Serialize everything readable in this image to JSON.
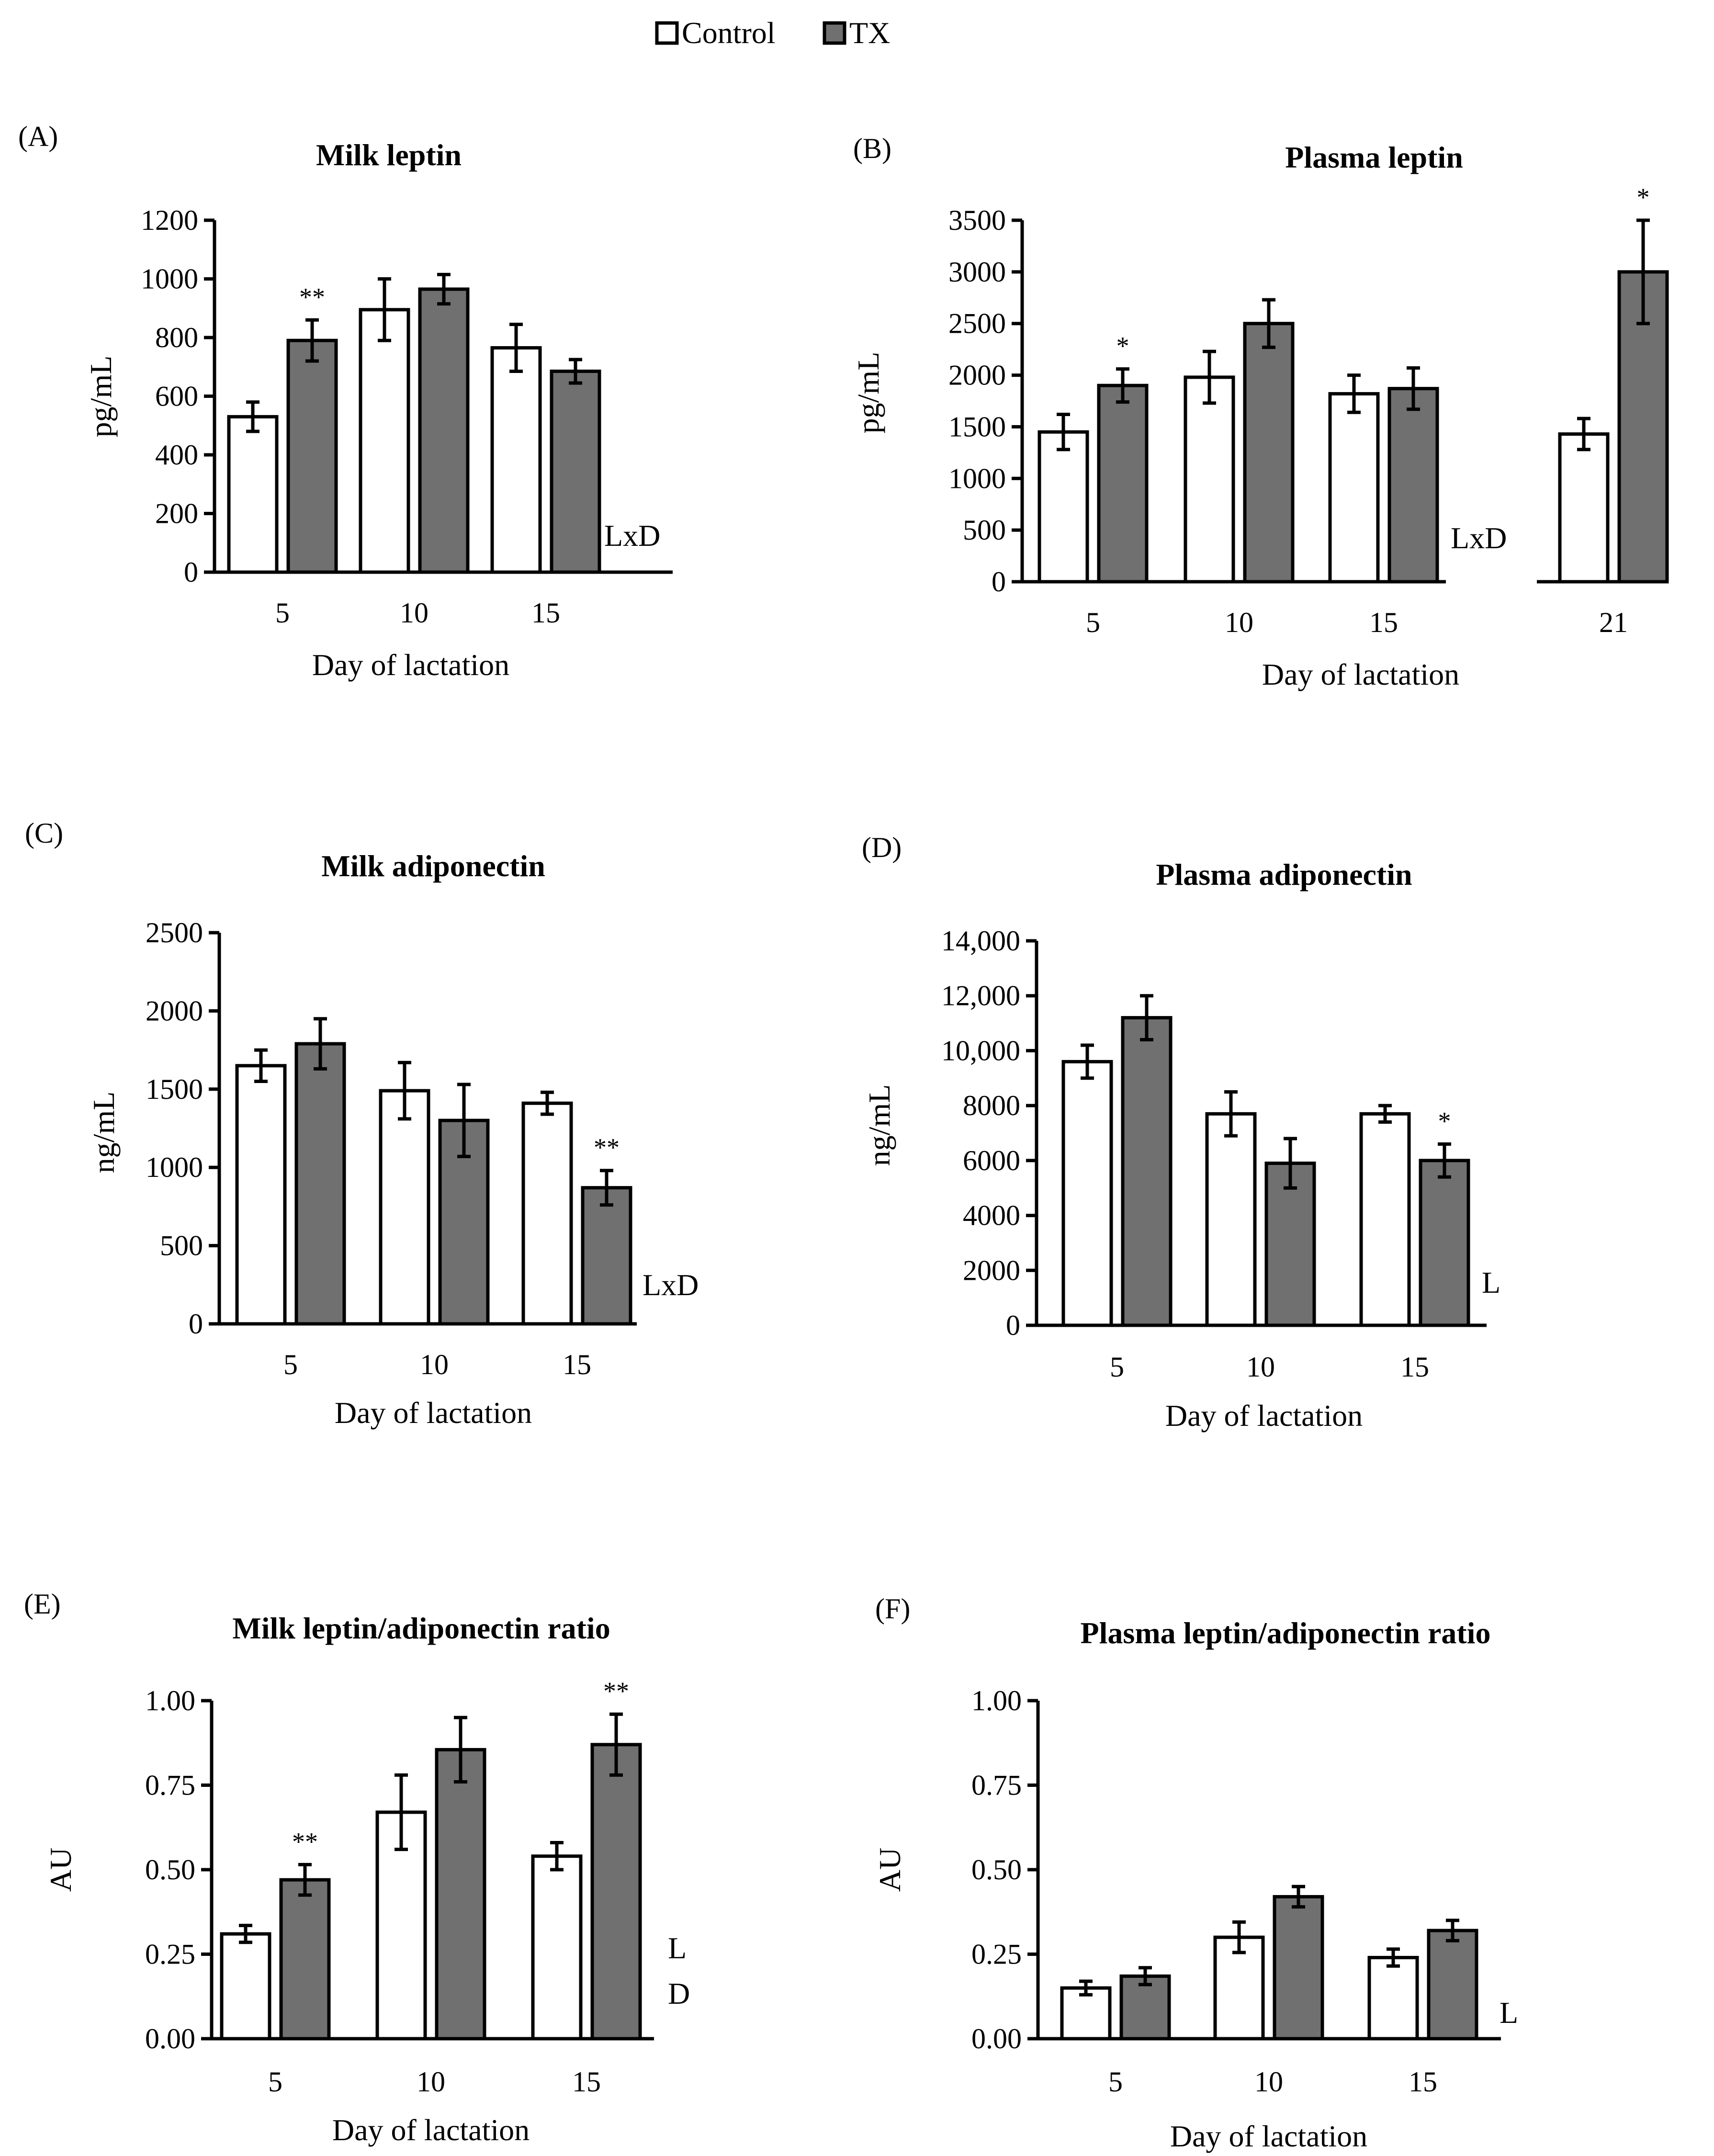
{
  "legend": {
    "items": [
      {
        "label": "Control",
        "color": "#ffffff"
      },
      {
        "label": "TX",
        "color": "#707070"
      }
    ]
  },
  "colors": {
    "control": "#ffffff",
    "tx": "#707070",
    "stroke": "#000000"
  },
  "chart_data": [
    {
      "id": "A",
      "panel_label": "(A)",
      "type": "bar",
      "title": "Milk leptin",
      "xlabel": "Day of lactation",
      "ylabel": "pg/mL",
      "categories": [
        "5",
        "10",
        "15"
      ],
      "ylim": [
        0,
        1200
      ],
      "yticks": [
        "0",
        "200",
        "400",
        "600",
        "800",
        "1000",
        "1200"
      ],
      "series": [
        {
          "name": "Control",
          "values": [
            530,
            895,
            765
          ],
          "errors": [
            50,
            105,
            80
          ]
        },
        {
          "name": "TX",
          "values": [
            790,
            965,
            685
          ],
          "errors": [
            70,
            50,
            40
          ]
        }
      ],
      "significance": [
        "**",
        "",
        ""
      ],
      "effect_label": [
        "LxD"
      ]
    },
    {
      "id": "B",
      "panel_label": "(B)",
      "type": "bar",
      "title": "Plasma leptin",
      "xlabel": "Day of lactation",
      "ylabel": "pg/mL",
      "categories": [
        "5",
        "10",
        "15"
      ],
      "ylim": [
        0,
        3500
      ],
      "yticks": [
        "0",
        "500",
        "1000",
        "1500",
        "2000",
        "2500",
        "3000",
        "3500"
      ],
      "series": [
        {
          "name": "Control",
          "values": [
            1450,
            1980,
            1820
          ],
          "errors": [
            170,
            250,
            180
          ]
        },
        {
          "name": "TX",
          "values": [
            1900,
            2500,
            1870
          ],
          "errors": [
            160,
            230,
            200
          ]
        }
      ],
      "significance": [
        "*",
        "",
        ""
      ],
      "effect_label": [
        "LxD"
      ],
      "extra_group": {
        "category": "21",
        "control": {
          "value": 1430,
          "error": 150
        },
        "tx": {
          "value": 3000,
          "error": 500
        },
        "significance": "*"
      }
    },
    {
      "id": "C",
      "panel_label": "(C)",
      "type": "bar",
      "title": "Milk adiponectin",
      "xlabel": "Day of lactation",
      "ylabel": "ng/mL",
      "categories": [
        "5",
        "10",
        "15"
      ],
      "ylim": [
        0,
        2500
      ],
      "yticks": [
        "0",
        "500",
        "1000",
        "1500",
        "2000",
        "2500"
      ],
      "series": [
        {
          "name": "Control",
          "values": [
            1650,
            1490,
            1410
          ],
          "errors": [
            100,
            180,
            70
          ]
        },
        {
          "name": "TX",
          "values": [
            1790,
            1300,
            870
          ],
          "errors": [
            160,
            230,
            110
          ]
        }
      ],
      "significance": [
        "",
        "",
        "**"
      ],
      "effect_label": [
        "LxD"
      ]
    },
    {
      "id": "D",
      "panel_label": "(D)",
      "type": "bar",
      "title": "Plasma adiponectin",
      "xlabel": "Day of lactation",
      "ylabel": "ng/mL",
      "categories": [
        "5",
        "10",
        "15"
      ],
      "ylim": [
        0,
        14000
      ],
      "yticks": [
        "0",
        "2000",
        "4000",
        "6000",
        "8000",
        "10,000",
        "12,000",
        "14,000"
      ],
      "series": [
        {
          "name": "Control",
          "values": [
            9600,
            7700,
            7700
          ],
          "errors": [
            600,
            800,
            300
          ]
        },
        {
          "name": "TX",
          "values": [
            11200,
            5900,
            6000
          ],
          "errors": [
            800,
            900,
            600
          ]
        }
      ],
      "significance": [
        "",
        "",
        "*"
      ],
      "effect_label": [
        "L"
      ]
    },
    {
      "id": "E",
      "panel_label": "(E)",
      "type": "bar",
      "title": "Milk leptin/adiponectin ratio",
      "xlabel": "Day of lactation",
      "ylabel": "AU",
      "categories": [
        "5",
        "10",
        "15"
      ],
      "ylim": [
        0,
        1
      ],
      "yticks": [
        "0.00",
        "0.25",
        "0.50",
        "0.75",
        "1.00"
      ],
      "series": [
        {
          "name": "Control",
          "values": [
            0.31,
            0.67,
            0.54
          ],
          "errors": [
            0.025,
            0.11,
            0.04
          ]
        },
        {
          "name": "TX",
          "values": [
            0.47,
            0.855,
            0.87
          ],
          "errors": [
            0.045,
            0.095,
            0.09
          ]
        }
      ],
      "significance": [
        "**",
        "",
        "**"
      ],
      "effect_label": [
        "L",
        "D"
      ]
    },
    {
      "id": "F",
      "panel_label": "(F)",
      "type": "bar",
      "title": "Plasma leptin/adiponectin ratio",
      "xlabel": "Day of lactation",
      "ylabel": "AU",
      "categories": [
        "5",
        "10",
        "15"
      ],
      "ylim": [
        0,
        1
      ],
      "yticks": [
        "0.00",
        "0.25",
        "0.50",
        "0.75",
        "1.00"
      ],
      "series": [
        {
          "name": "Control",
          "values": [
            0.15,
            0.3,
            0.24
          ],
          "errors": [
            0.02,
            0.045,
            0.025
          ]
        },
        {
          "name": "TX",
          "values": [
            0.185,
            0.42,
            0.32
          ],
          "errors": [
            0.025,
            0.03,
            0.03
          ]
        }
      ],
      "significance": [
        "",
        "",
        ""
      ],
      "effect_label": [
        "L"
      ]
    }
  ]
}
